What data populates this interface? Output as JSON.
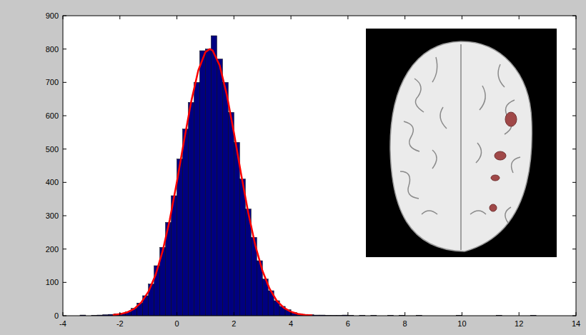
{
  "chart_data": {
    "type": "histogram",
    "bins": [
      -3.4,
      -3.2,
      -3.0,
      -2.8,
      -2.6,
      -2.4,
      -2.2,
      -2.0,
      -1.8,
      -1.6,
      -1.4,
      -1.2,
      -1.0,
      -0.8,
      -0.6,
      -0.4,
      -0.2,
      0,
      0.2,
      0.4,
      0.6,
      0.8,
      1.0,
      1.2,
      1.4,
      1.6,
      1.8,
      2.0,
      2.2,
      2.4,
      2.6,
      2.8,
      3.0,
      3.2,
      3.4,
      3.6,
      3.8,
      4.0,
      4.2,
      4.4,
      4.6,
      4.8,
      5.0,
      5.2,
      5.4,
      5.6,
      5.8,
      6.0,
      6.2,
      6.4,
      6.6,
      6.8,
      7.0,
      7.2,
      7.4,
      7.6,
      7.8,
      8.0,
      8.2,
      8.4,
      8.6,
      8.8,
      9.0,
      9.2,
      9.4,
      9.6,
      9.8,
      10.0,
      10.2,
      10.4,
      10.6,
      10.8,
      11.0,
      11.2,
      11.4,
      11.6,
      11.8,
      12.0,
      12.2,
      12.4,
      12.6,
      12.8,
      13.0
    ],
    "series": [
      {
        "type": "bar",
        "color": "#000080",
        "values": [
          2,
          0,
          1,
          2,
          3,
          4,
          6,
          8,
          12,
          22,
          38,
          60,
          95,
          150,
          205,
          280,
          360,
          470,
          560,
          640,
          700,
          795,
          800,
          840,
          770,
          700,
          610,
          520,
          410,
          320,
          235,
          165,
          110,
          75,
          45,
          28,
          18,
          10,
          6,
          4,
          3,
          2,
          2,
          1,
          1,
          1,
          2,
          1,
          0,
          1,
          0,
          1,
          0,
          0,
          1,
          0,
          1,
          0,
          0,
          1,
          0,
          0,
          0,
          0,
          0,
          0,
          1,
          0,
          0,
          0,
          0,
          0,
          0,
          1,
          0,
          0,
          0,
          0,
          0,
          1,
          0,
          0
        ]
      },
      {
        "type": "line",
        "color": "#ff0000",
        "x": [
          -2.25,
          -2.0,
          -1.75,
          -1.5,
          -1.25,
          -1.0,
          -0.75,
          -0.5,
          -0.25,
          0,
          0.25,
          0.5,
          0.75,
          1.0,
          1.15,
          1.25,
          1.5,
          1.75,
          2.0,
          2.25,
          2.5,
          2.75,
          3.0,
          3.25,
          3.5,
          3.75,
          4.0,
          4.25,
          4.5,
          4.75
        ],
        "values": [
          1.9,
          4.6,
          10,
          20.7,
          39.9,
          72,
          122,
          194,
          288,
          402,
          525,
          642,
          736,
          791,
          800,
          796,
          751,
          663,
          549,
          426,
          310,
          211,
          135,
          81,
          45,
          24,
          11.7,
          5.4,
          2.3,
          0.9
        ]
      }
    ],
    "xlim": [
      -4,
      14
    ],
    "xticks": [
      -4,
      -2,
      0,
      2,
      4,
      6,
      8,
      10,
      12,
      14
    ],
    "ylim": [
      0,
      900
    ],
    "yticks": [
      0,
      100,
      200,
      300,
      400,
      500,
      600,
      700,
      800,
      900
    ],
    "grid": false
  }
}
